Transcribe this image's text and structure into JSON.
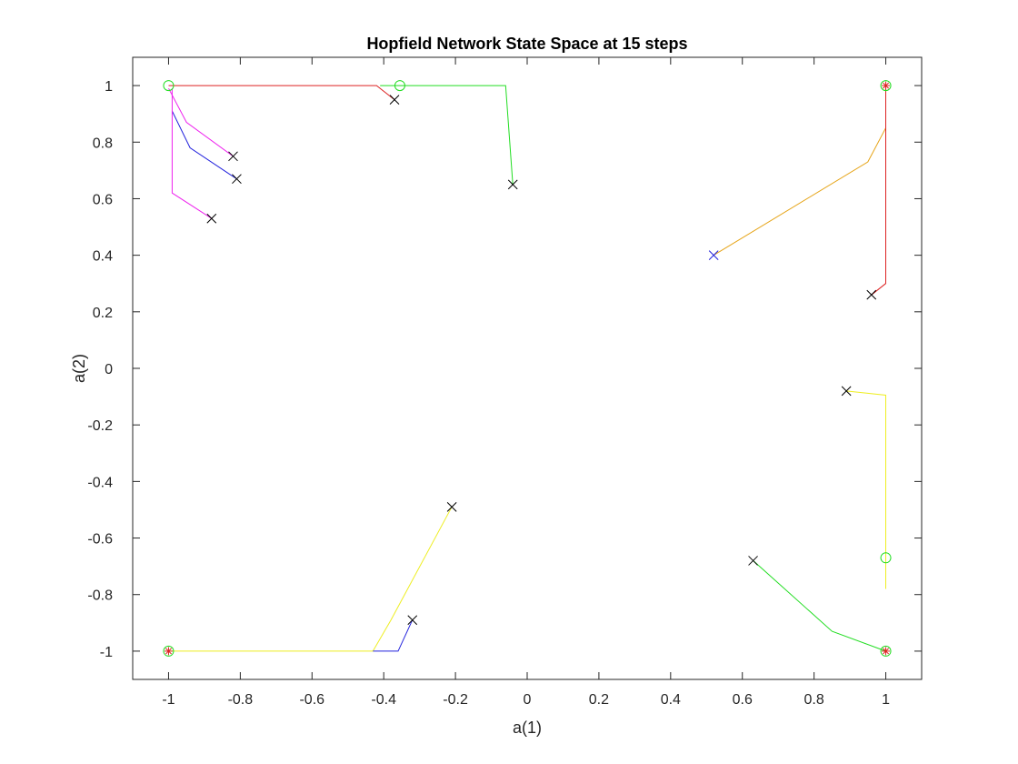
{
  "chart_data": {
    "type": "line",
    "title": "Hopfield Network State Space at 15 steps",
    "xlabel": "a(1)",
    "ylabel": "a(2)",
    "xlim": [
      -1.1,
      1.1
    ],
    "ylim": [
      -1.1,
      1.1
    ],
    "xticks": [
      -1,
      -0.8,
      -0.6,
      -0.4,
      -0.2,
      0,
      0.2,
      0.4,
      0.6,
      0.8,
      1
    ],
    "yticks": [
      -1,
      -0.8,
      -0.6,
      -0.4,
      -0.2,
      0,
      0.2,
      0.4,
      0.6,
      0.8,
      1
    ],
    "xtick_labels": [
      "-1",
      "-0.8",
      "-0.6",
      "-0.4",
      "-0.2",
      "0",
      "0.2",
      "0.4",
      "0.6",
      "0.8",
      "1"
    ],
    "ytick_labels": [
      "-1",
      "-0.8",
      "-0.6",
      "-0.4",
      "-0.2",
      "0",
      "0.2",
      "0.4",
      "0.6",
      "0.8",
      "1"
    ],
    "grid": false,
    "box": true,
    "series": [
      {
        "color": "#dd2222",
        "points": [
          [
            -0.37,
            0.95
          ],
          [
            -0.42,
            1.0
          ],
          [
            -1.0,
            1.0
          ]
        ]
      },
      {
        "color": "#22dd22",
        "points": [
          [
            -0.04,
            0.65
          ],
          [
            -0.06,
            1.0
          ],
          [
            -0.41,
            1.0
          ]
        ]
      },
      {
        "color": "#ee22ee",
        "points": [
          [
            -0.82,
            0.75
          ],
          [
            -0.95,
            0.87
          ],
          [
            -1.0,
            0.99
          ]
        ]
      },
      {
        "color": "#2222dd",
        "points": [
          [
            -0.81,
            0.67
          ],
          [
            -0.94,
            0.78
          ],
          [
            -0.99,
            0.91
          ]
        ]
      },
      {
        "color": "#ee22ee",
        "points": [
          [
            -0.88,
            0.53
          ],
          [
            -0.99,
            0.62
          ],
          [
            -0.99,
            0.99
          ]
        ]
      },
      {
        "color": "#e6a417",
        "points": [
          [
            0.52,
            0.4
          ],
          [
            0.95,
            0.73
          ],
          [
            1.0,
            0.85
          ]
        ]
      },
      {
        "color": "#dd2222",
        "points": [
          [
            0.96,
            0.26
          ],
          [
            1.0,
            0.3
          ],
          [
            1.0,
            1.0
          ]
        ]
      },
      {
        "color": "#eeee22",
        "points": [
          [
            0.89,
            -0.08
          ],
          [
            1.0,
            -0.095
          ],
          [
            1.0,
            -0.78
          ]
        ]
      },
      {
        "color": "#22dd22",
        "points": [
          [
            0.63,
            -0.68
          ],
          [
            0.85,
            -0.93
          ],
          [
            1.0,
            -1.0
          ]
        ]
      },
      {
        "color": "#eeee22",
        "points": [
          [
            -0.21,
            -0.49
          ],
          [
            -0.38,
            -0.89
          ],
          [
            -0.43,
            -1.0
          ],
          [
            -1.0,
            -1.0
          ]
        ]
      },
      {
        "color": "#2222dd",
        "points": [
          [
            -0.32,
            -0.89
          ],
          [
            -0.36,
            -1.0
          ],
          [
            -0.43,
            -1.0
          ]
        ]
      }
    ],
    "start_markers": [
      {
        "color": "#000000",
        "x": -0.37,
        "y": 0.95
      },
      {
        "color": "#000000",
        "x": -0.04,
        "y": 0.65
      },
      {
        "color": "#000000",
        "x": -0.82,
        "y": 0.75
      },
      {
        "color": "#000000",
        "x": -0.81,
        "y": 0.67
      },
      {
        "color": "#000000",
        "x": -0.88,
        "y": 0.53
      },
      {
        "color": "#2222dd",
        "x": 0.52,
        "y": 0.4
      },
      {
        "color": "#000000",
        "x": 0.96,
        "y": 0.26
      },
      {
        "color": "#000000",
        "x": 0.89,
        "y": -0.08
      },
      {
        "color": "#000000",
        "x": 0.63,
        "y": -0.68
      },
      {
        "color": "#000000",
        "x": -0.21,
        "y": -0.49
      },
      {
        "color": "#000000",
        "x": -0.32,
        "y": -0.89
      }
    ],
    "circle_markers": [
      {
        "color": "#22dd22",
        "x": -1.0,
        "y": 1.0
      },
      {
        "color": "#22dd22",
        "x": -0.355,
        "y": 1.0
      },
      {
        "color": "#22dd22",
        "x": 1.0,
        "y": 1.0
      },
      {
        "color": "#22dd22",
        "x": 1.0,
        "y": -0.67
      },
      {
        "color": "#22dd22",
        "x": 1.0,
        "y": -1.0
      },
      {
        "color": "#22dd22",
        "x": -1.0,
        "y": -1.0
      }
    ],
    "star_markers": [
      {
        "color": "#dd2222",
        "x": 1.0,
        "y": 1.0
      },
      {
        "color": "#dd2222",
        "x": 1.0,
        "y": -1.0
      },
      {
        "color": "#dd2222",
        "x": -1.0,
        "y": -1.0
      }
    ]
  }
}
